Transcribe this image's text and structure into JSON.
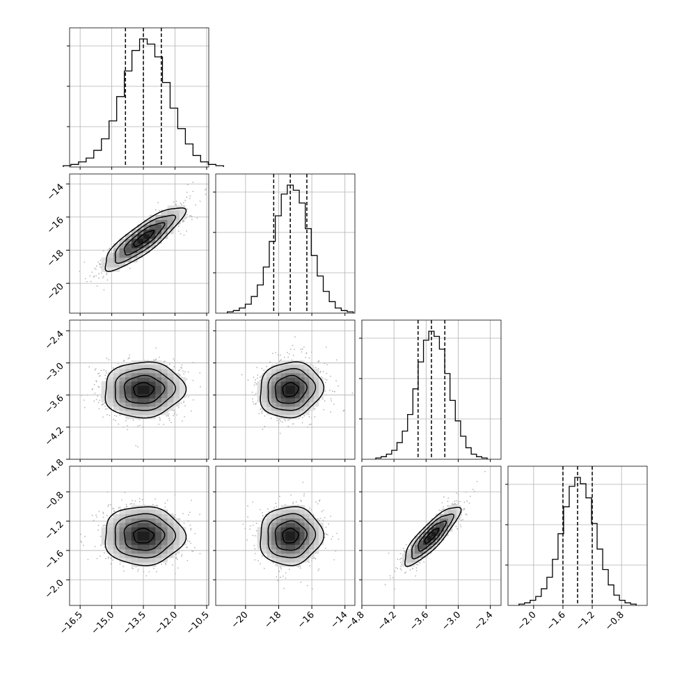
{
  "chart_data": {
    "type": "corner",
    "n_params": 4,
    "quantile_style": "dashed",
    "grid": true,
    "colors": {
      "hist": "#000000",
      "grid": "#b0b0b0",
      "points": "#b5b5b5"
    },
    "params": [
      {
        "id": "p1",
        "range": [
          -17.0,
          -10.4
        ],
        "ticks": [
          -16.5,
          -15.0,
          -13.5,
          -12.0,
          -10.5
        ],
        "tick_labels": [
          "−16.5",
          "−15.0",
          "−13.5",
          "−12.0",
          "−10.5"
        ],
        "mean": -13.5,
        "sd": 0.95,
        "quantiles": [
          -14.35,
          -13.5,
          -12.65
        ],
        "hist_heights": [
          0.01,
          0.02,
          0.04,
          0.07,
          0.13,
          0.22,
          0.36,
          0.55,
          0.75,
          0.91,
          1.0,
          0.96,
          0.86,
          0.66,
          0.46,
          0.3,
          0.18,
          0.09,
          0.04,
          0.02,
          0.01
        ]
      },
      {
        "id": "p2",
        "range": [
          -21.8,
          -13.4
        ],
        "ticks": [
          -20,
          -18,
          -16,
          -14
        ],
        "tick_labels": [
          "−20",
          "−18",
          "−16",
          "−14"
        ],
        "mean": -17.3,
        "sd": 0.95,
        "quantiles": [
          -18.3,
          -17.3,
          -16.3
        ],
        "hist_heights": [
          0.01,
          0.02,
          0.04,
          0.07,
          0.13,
          0.22,
          0.36,
          0.56,
          0.76,
          0.93,
          1.0,
          0.96,
          0.86,
          0.66,
          0.45,
          0.29,
          0.17,
          0.09,
          0.04,
          0.02,
          0.01
        ]
      },
      {
        "id": "p3",
        "range": [
          -4.8,
          -2.2
        ],
        "ticks": [
          -4.8,
          -4.2,
          -3.6,
          -3.0,
          -2.4
        ],
        "tick_labels": [
          "−4.8",
          "−4.2",
          "−3.6",
          "−3.0",
          "−2.4"
        ],
        "mean": -3.5,
        "sd": 0.26,
        "quantiles": [
          -3.75,
          -3.5,
          -3.25
        ],
        "hist_heights": [
          0.01,
          0.02,
          0.04,
          0.07,
          0.13,
          0.22,
          0.35,
          0.55,
          0.76,
          0.93,
          1.0,
          0.96,
          0.86,
          0.67,
          0.46,
          0.3,
          0.18,
          0.09,
          0.04,
          0.02,
          0.01
        ]
      },
      {
        "id": "p4",
        "range": [
          -2.35,
          -0.45
        ],
        "ticks": [
          -2.0,
          -1.6,
          -1.2,
          -0.8
        ],
        "tick_labels": [
          "−2.0",
          "−1.6",
          "−1.2",
          "−0.8"
        ],
        "mean": -1.4,
        "sd": 0.2,
        "quantiles": [
          -1.6,
          -1.4,
          -1.2
        ],
        "hist_heights": [
          0.01,
          0.02,
          0.04,
          0.07,
          0.13,
          0.22,
          0.36,
          0.56,
          0.77,
          0.93,
          1.0,
          0.95,
          0.84,
          0.64,
          0.44,
          0.28,
          0.16,
          0.08,
          0.04,
          0.02,
          0.01
        ]
      }
    ],
    "correlations": [
      {
        "pair": [
          1,
          0
        ],
        "rho": 0.85
      },
      {
        "pair": [
          2,
          0
        ],
        "rho": 0.05
      },
      {
        "pair": [
          2,
          1
        ],
        "rho": 0.1
      },
      {
        "pair": [
          3,
          0
        ],
        "rho": 0.0
      },
      {
        "pair": [
          3,
          1
        ],
        "rho": 0.05
      },
      {
        "pair": [
          3,
          2
        ],
        "rho": 0.85
      }
    ]
  }
}
